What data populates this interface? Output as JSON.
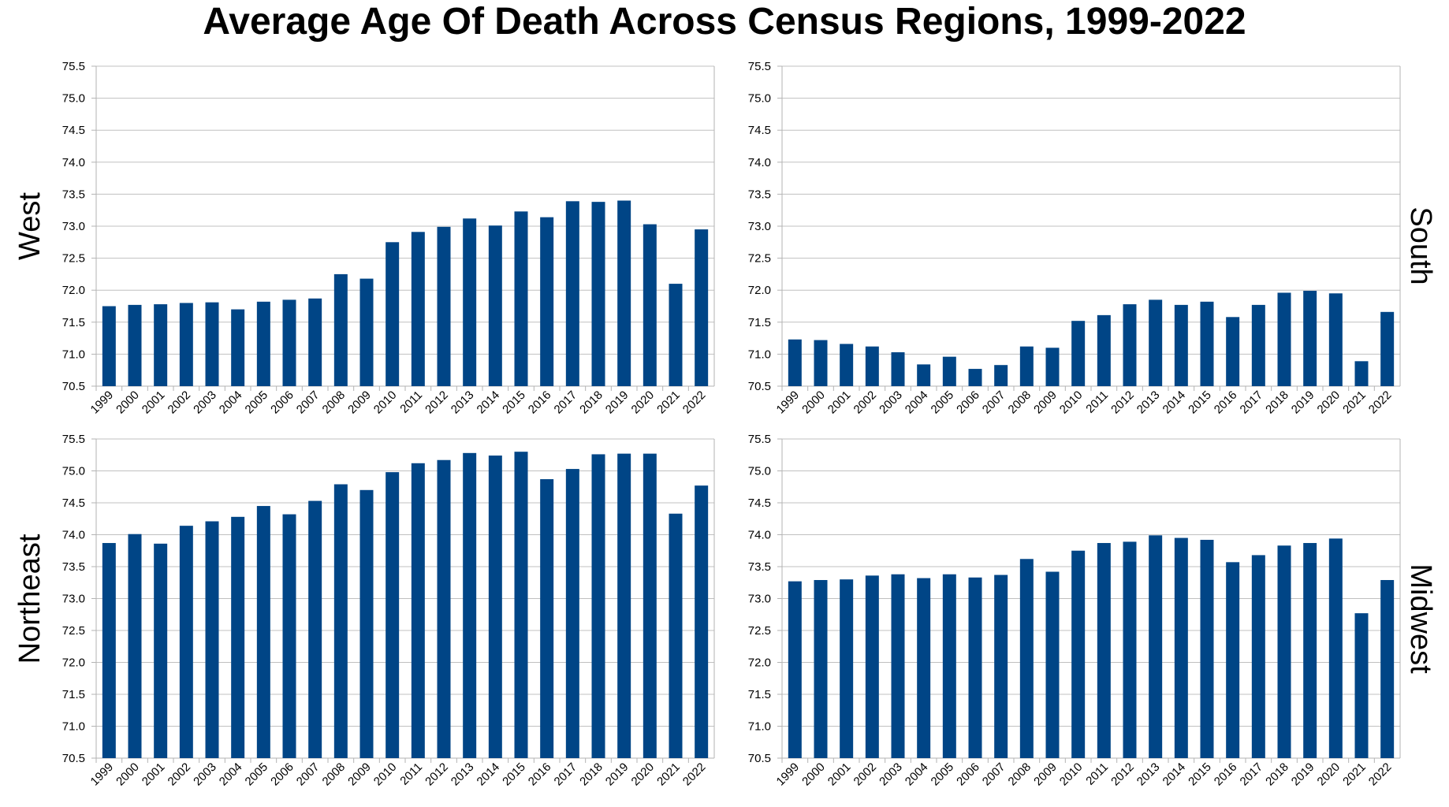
{
  "title": "Average Age Of Death Across Census Regions, 1999-2022",
  "colors": {
    "bar": "#004586",
    "grid": "#c0c0c0",
    "axis": "#b3b3b3"
  },
  "chart_data": [
    {
      "type": "bar",
      "region": "West",
      "title": "West",
      "categories": [
        "1999",
        "2000",
        "2001",
        "2002",
        "2003",
        "2004",
        "2005",
        "2006",
        "2007",
        "2008",
        "2009",
        "2010",
        "2011",
        "2012",
        "2013",
        "2014",
        "2015",
        "2016",
        "2017",
        "2018",
        "2019",
        "2020",
        "2021",
        "2022"
      ],
      "values": [
        71.75,
        71.77,
        71.78,
        71.8,
        71.81,
        71.7,
        71.82,
        71.85,
        71.87,
        72.25,
        72.18,
        72.75,
        72.91,
        72.99,
        73.12,
        73.01,
        73.23,
        73.14,
        73.39,
        73.38,
        73.4,
        73.03,
        72.1,
        72.95
      ],
      "yticks": [
        "70.5",
        "71.0",
        "71.5",
        "72.0",
        "72.5",
        "73.0",
        "73.5",
        "74.0",
        "74.5",
        "75.0",
        "75.5"
      ],
      "ylim": [
        70.5,
        75.5
      ],
      "xlabel": "",
      "ylabel": "",
      "grid": true
    },
    {
      "type": "bar",
      "region": "South",
      "title": "South",
      "categories": [
        "1999",
        "2000",
        "2001",
        "2002",
        "2003",
        "2004",
        "2005",
        "2006",
        "2007",
        "2008",
        "2009",
        "2010",
        "2011",
        "2012",
        "2013",
        "2014",
        "2015",
        "2016",
        "2017",
        "2018",
        "2019",
        "2020",
        "2021",
        "2022"
      ],
      "values": [
        71.23,
        71.22,
        71.16,
        71.12,
        71.03,
        70.84,
        70.96,
        70.77,
        70.83,
        71.12,
        71.1,
        71.52,
        71.61,
        71.78,
        71.85,
        71.77,
        71.82,
        71.58,
        71.77,
        71.96,
        71.99,
        71.95,
        70.89,
        71.66
      ],
      "yticks": [
        "70.5",
        "71.0",
        "71.5",
        "72.0",
        "72.5",
        "73.0",
        "73.5",
        "74.0",
        "74.5",
        "75.0",
        "75.5"
      ],
      "ylim": [
        70.5,
        75.5
      ],
      "xlabel": "",
      "ylabel": "",
      "grid": true
    },
    {
      "type": "bar",
      "region": "Northeast",
      "title": "Northeast",
      "categories": [
        "1999",
        "2000",
        "2001",
        "2002",
        "2003",
        "2004",
        "2005",
        "2006",
        "2007",
        "2008",
        "2009",
        "2010",
        "2011",
        "2012",
        "2013",
        "2014",
        "2015",
        "2016",
        "2017",
        "2018",
        "2019",
        "2020",
        "2021",
        "2022"
      ],
      "values": [
        73.87,
        74.01,
        73.86,
        74.14,
        74.21,
        74.28,
        74.45,
        74.32,
        74.53,
        74.79,
        74.7,
        74.98,
        75.12,
        75.17,
        75.28,
        75.24,
        75.3,
        74.87,
        75.03,
        75.26,
        75.27,
        75.27,
        74.33,
        74.77
      ],
      "yticks": [
        "70.5",
        "71.0",
        "71.5",
        "72.0",
        "72.5",
        "73.0",
        "73.5",
        "74.0",
        "74.5",
        "75.0",
        "75.5"
      ],
      "ylim": [
        70.5,
        75.5
      ],
      "xlabel": "",
      "ylabel": "",
      "grid": true
    },
    {
      "type": "bar",
      "region": "Midwest",
      "title": "Midwest",
      "categories": [
        "1999",
        "2000",
        "2001",
        "2002",
        "2003",
        "2004",
        "2005",
        "2006",
        "2007",
        "2008",
        "2009",
        "2010",
        "2011",
        "2012",
        "2013",
        "2014",
        "2015",
        "2016",
        "2017",
        "2018",
        "2019",
        "2020",
        "2021",
        "2022"
      ],
      "values": [
        73.27,
        73.29,
        73.3,
        73.36,
        73.38,
        73.32,
        73.38,
        73.33,
        73.37,
        73.62,
        73.42,
        73.75,
        73.87,
        73.89,
        73.99,
        73.95,
        73.92,
        73.57,
        73.68,
        73.83,
        73.87,
        73.94,
        72.77,
        73.29
      ],
      "yticks": [
        "70.5",
        "71.0",
        "71.5",
        "72.0",
        "72.5",
        "73.0",
        "73.5",
        "74.0",
        "74.5",
        "75.0",
        "75.5"
      ],
      "ylim": [
        70.5,
        75.5
      ],
      "xlabel": "",
      "ylabel": "",
      "grid": true
    }
  ]
}
